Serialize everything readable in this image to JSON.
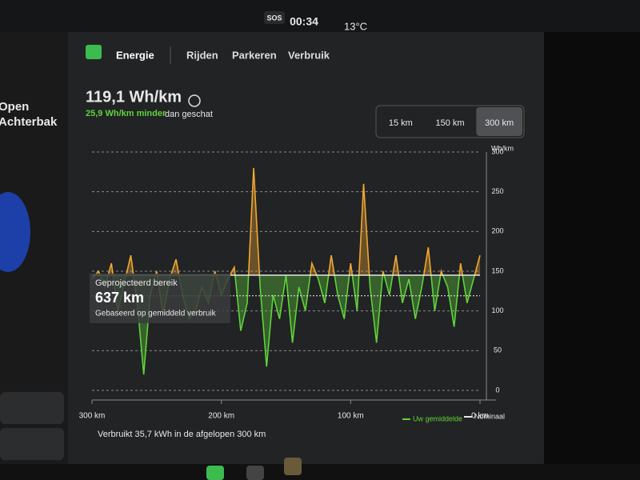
{
  "status_bar": {
    "sos": "SOS",
    "time": "00:34",
    "temperature": "13°C"
  },
  "side_panel": {
    "trunk_line1": "Open",
    "trunk_line2": "Achterbak"
  },
  "tabs": [
    "Energie",
    "Rijden",
    "Parkeren",
    "Verbruik"
  ],
  "summary": {
    "consumption": "119,1 Wh/km",
    "difference": "25,9 Wh/km minder",
    "difference_suffix": "dan geschat"
  },
  "range_buttons": [
    "15 km",
    "150 km",
    "300 km"
  ],
  "selected_range": 2,
  "projection": {
    "label": "Geprojecteerd bereik",
    "range": "637 km",
    "note": "Gebaseerd op gemiddeld verbruik"
  },
  "footer": "Verbruikt 35,7 kWh in de afgelopen 300 km",
  "chart_data": {
    "type": "line",
    "y_label": "Wh/km",
    "x": [
      300,
      295,
      290,
      285,
      280,
      275,
      270,
      265,
      260,
      255,
      250,
      245,
      240,
      235,
      230,
      225,
      220,
      215,
      210,
      205,
      200,
      195,
      190,
      185,
      180,
      175,
      170,
      165,
      160,
      155,
      150,
      145,
      140,
      135,
      130,
      125,
      120,
      115,
      110,
      105,
      100,
      95,
      90,
      85,
      80,
      75,
      70,
      65,
      60,
      55,
      50,
      45,
      40,
      35,
      30,
      25,
      20,
      15,
      10,
      5,
      0
    ],
    "series": [
      {
        "name": "Uw gemiddelde",
        "color": "#5fd33a",
        "values": [
          140,
          150,
          130,
          160,
          100,
          135,
          170,
          110,
          20,
          120,
          150,
          95,
          140,
          165,
          120,
          90,
          100,
          130,
          110,
          150,
          120,
          140,
          155,
          75,
          110,
          280,
          130,
          30,
          120,
          90,
          145,
          60,
          130,
          100,
          160,
          140,
          110,
          170,
          120,
          90,
          160,
          100,
          260,
          130,
          60,
          150,
          120,
          170,
          110,
          140,
          90,
          130,
          180,
          100,
          150,
          130,
          80,
          160,
          110,
          140,
          170
        ]
      }
    ],
    "above_color": "#f0a830",
    "reference_lines": [
      {
        "name": "Nominaal",
        "value": 145,
        "color": "#e6e6e6"
      }
    ],
    "average_line": 119,
    "xlim": [
      300,
      0
    ],
    "ylim": [
      0,
      300
    ],
    "xticks": [
      {
        "value": 300,
        "label": "300 km"
      },
      {
        "value": 200,
        "label": "200 km"
      },
      {
        "value": 100,
        "label": "100 km"
      },
      {
        "value": 0,
        "label": "0 km"
      }
    ],
    "yticks": [
      0,
      50,
      100,
      150,
      200,
      250,
      300
    ],
    "grid": true
  }
}
